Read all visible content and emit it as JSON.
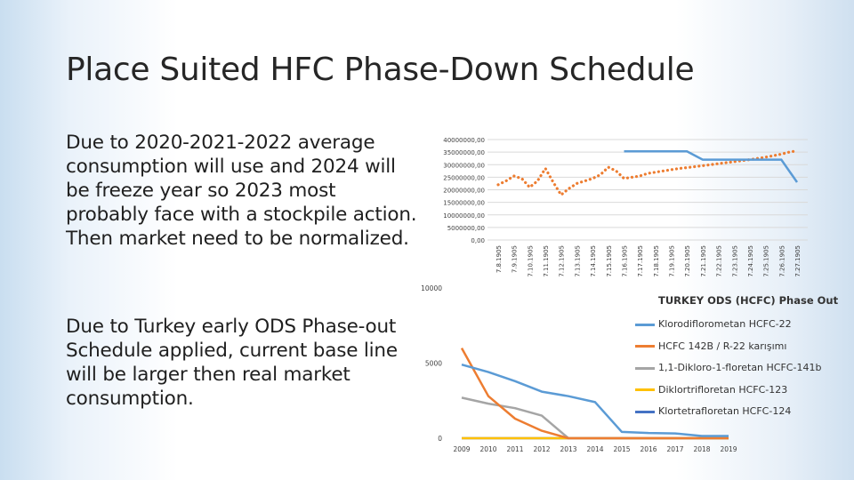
{
  "slide": {
    "title": "Place Suited HFC Phase-Down Schedule",
    "paragraph1": "Due to 2020-2021-2022 average consumption will use and 2024 will be freeze year so 2023 most probably face with a stockpile action. Then market need to be normalized.",
    "paragraph2": "Due to Turkey early ODS Phase-out Schedule applied, current base line will be larger then real market consumption."
  },
  "chart_data": [
    {
      "type": "line",
      "title": "",
      "ylim": [
        0,
        40000000
      ],
      "y_ticks": [
        "0,00",
        "5000000,00",
        "10000000,00",
        "15000000,00",
        "20000000,00",
        "25000000,00",
        "30000000,00",
        "35000000,00",
        "40000000,00"
      ],
      "grid": true,
      "categories": [
        "7.8.1905",
        "7.9.1905",
        "7.10.1905",
        "7.11.1905",
        "7.12.1905",
        "7.13.1905",
        "7.14.1905",
        "7.15.1905",
        "7.16.1905",
        "7.17.1905",
        "7.18.1905",
        "7.19.1905",
        "7.20.1905",
        "7.21.1905",
        "7.22.1905",
        "7.23.1905",
        "7.24.1905",
        "7.25.1905",
        "7.26.1905",
        "7.27.1905"
      ],
      "series": [
        {
          "style": "dotted",
          "color": "#ed7d31",
          "x": [
            0,
            0.5,
            1,
            1.5,
            2,
            2.5,
            3,
            3.5,
            4,
            4.5,
            5,
            5.5,
            6,
            6.5,
            7,
            7.5,
            8,
            8.5,
            9,
            9.5,
            10,
            10.5,
            11,
            11.5,
            12,
            12.5,
            13,
            13.5,
            14,
            14.5,
            15,
            15.5,
            16,
            16.5,
            17,
            17.5,
            18,
            18.5,
            19
          ],
          "values": [
            22000000,
            23500000,
            25500000,
            24500000,
            21000000,
            23500000,
            28500000,
            23000000,
            18000000,
            20500000,
            22500000,
            23500000,
            24500000,
            26000000,
            29000000,
            27500000,
            24500000,
            25000000,
            25500000,
            26500000,
            27000000,
            27500000,
            28000000,
            28500000,
            28800000,
            29200000,
            29600000,
            30000000,
            30400000,
            30800000,
            31200000,
            31600000,
            32000000,
            32500000,
            33000000,
            33600000,
            34200000,
            35000000,
            35500000
          ]
        },
        {
          "style": "solid",
          "color": "#5b9bd5",
          "x": [
            8,
            12,
            13,
            17,
            18,
            19
          ],
          "values": [
            35300000,
            35300000,
            32000000,
            32000000,
            32000000,
            23000000
          ]
        }
      ]
    },
    {
      "type": "line",
      "title": "TURKEY ODS (HCFC) Phase Out",
      "ylim": [
        0,
        10000
      ],
      "y_ticks": [
        "0",
        "5000",
        "10000"
      ],
      "categories": [
        "2009",
        "2010",
        "2011",
        "2012",
        "2013",
        "2014",
        "2015",
        "2016",
        "2017",
        "2018",
        "2019"
      ],
      "legend_position": "right",
      "series": [
        {
          "name": "Klorodiflorometan HCFC-22",
          "color": "#5b9bd5",
          "values": [
            4900,
            4400,
            3800,
            3100,
            2800,
            2400,
            420,
            350,
            320,
            150,
            150
          ]
        },
        {
          "name": "HCFC 142B / R-22 karışımı",
          "color": "#ed7d31",
          "values": [
            6000,
            2800,
            1300,
            500,
            0,
            0,
            0,
            0,
            0,
            0,
            0
          ]
        },
        {
          "name": "1,1-Dikloro-1-floretan HCFC-141b",
          "color": "#a5a5a5",
          "values": [
            2700,
            2300,
            2000,
            1500,
            0,
            0,
            0,
            0,
            0,
            0,
            0
          ]
        },
        {
          "name": "Diklortrifloretan HCFC-123",
          "color": "#ffc000",
          "values": [
            0,
            0,
            0,
            0,
            0,
            0,
            0,
            0,
            0,
            0,
            0
          ]
        },
        {
          "name": "Klortetrafloretan HCFC-124",
          "color": "#4472c4",
          "values": [
            0,
            0,
            0,
            0,
            0,
            0,
            0,
            0,
            0,
            0,
            0
          ]
        }
      ]
    }
  ]
}
